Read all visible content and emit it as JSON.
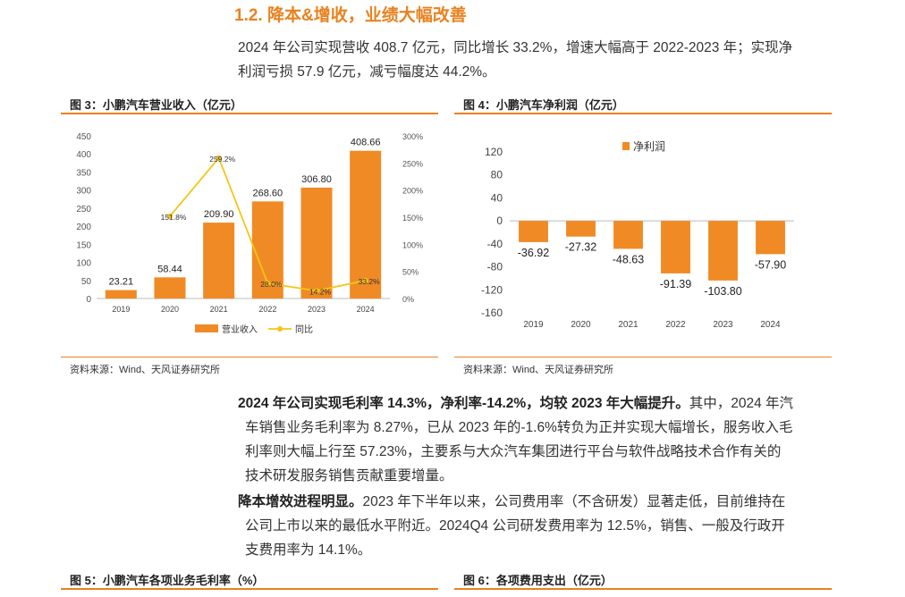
{
  "section": {
    "title": "1.2. 降本&增收，业绩大幅改善"
  },
  "intro": {
    "lines": [
      "2024 年公司实现营收 408.7 亿元，同比增长 33.2%，增速大幅高于 2022-2023 年；实现净",
      "利润亏损 57.9 亿元，减亏幅度达 44.2%。"
    ]
  },
  "fig3": {
    "title": "图 3：小鹏汽车营业收入（亿元）",
    "source": "资料来源：Wind、天风证券研究所"
  },
  "fig4": {
    "title": "图 4：小鹏汽车净利润（亿元）",
    "source": "资料来源：Wind、天风证券研究所"
  },
  "para2": {
    "bold": "2024 年公司实现毛利率 14.3%，净利率-14.2%，均较 2023 年大幅提升。",
    "lines": [
      "其中，2024 年汽",
      "车销售业务毛利率为 8.27%，已从 2023 年的-1.6%转负为正并实现大幅增长，服务收入毛",
      "利率则大幅上行至  57.23%，主要系与大众汽车集团进行平台与软件战略技术合作有关的",
      "技术研发服务销售贡献重要增量。"
    ]
  },
  "para3": {
    "bold": "降本增效进程明显。",
    "lines": [
      "2023 年下半年以来，公司费用率（不含研发）显著走低，目前维持在",
      "公司上市以来的最低水平附近。2024Q4 公司研发费用率为 12.5%，销售、一般及行政开",
      "支费用率为 14.1%。"
    ]
  },
  "fig5": {
    "title": "图 5：小鹏汽车各项业务毛利率（%）"
  },
  "fig6": {
    "title": "图 6：各项费用支出（亿元）"
  },
  "colors": {
    "accent": "#e8821f",
    "bar": "#f08a24",
    "line": "#f5c518"
  },
  "chart_data": [
    {
      "type": "bar",
      "categories": [
        "2019",
        "2020",
        "2021",
        "2022",
        "2023",
        "2024"
      ],
      "series": [
        {
          "name": "营业收入",
          "type": "bar",
          "values": [
            23.21,
            58.44,
            209.9,
            268.6,
            306.8,
            408.66
          ],
          "labels": [
            "23.21",
            "58.44",
            "209.90",
            "268.60",
            "306.80",
            "408.66"
          ]
        },
        {
          "name": "同比",
          "type": "line",
          "axis": "right",
          "values": [
            null,
            151.8,
            259.2,
            28.0,
            14.2,
            33.2
          ],
          "labels": [
            "",
            "151.8%",
            "259.2%",
            "28.0%",
            "14.2%",
            "33.2%"
          ]
        }
      ],
      "ylim": [
        0,
        450
      ],
      "yticks": [
        "0",
        "50",
        "100",
        "150",
        "200",
        "250",
        "300",
        "350",
        "400",
        "450"
      ],
      "y2lim": [
        0,
        300
      ],
      "y2ticks": [
        "0%",
        "50%",
        "100%",
        "150%",
        "200%",
        "250%",
        "300%"
      ],
      "legend": "bottom",
      "grid": false
    },
    {
      "type": "bar",
      "categories": [
        "2019",
        "2020",
        "2021",
        "2022",
        "2023",
        "2024"
      ],
      "series": [
        {
          "name": "净利润",
          "values": [
            -36.92,
            -27.32,
            -48.63,
            -91.39,
            -103.8,
            -57.9
          ],
          "labels": [
            "-36.92",
            "-27.32",
            "-48.63",
            "-91.39",
            "-103.80",
            "-57.90"
          ]
        }
      ],
      "ylim": [
        -160,
        120
      ],
      "yticks": [
        "120",
        "80",
        "40",
        "0",
        "-40",
        "-80",
        "-120",
        "-160"
      ],
      "legend": "top-left",
      "grid": false
    }
  ]
}
